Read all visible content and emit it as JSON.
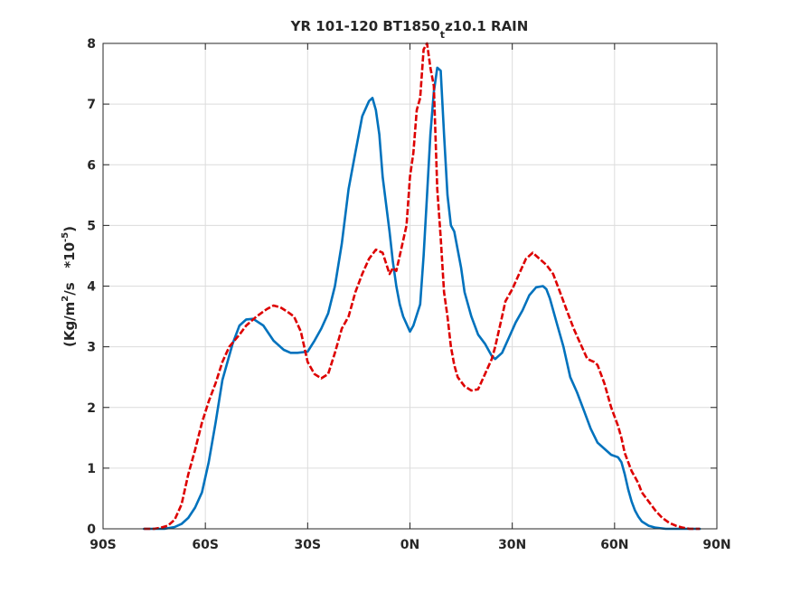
{
  "chart_data": {
    "type": "line",
    "title": {
      "main": "YR 101-120 BT1850",
      "subscript": "t",
      "rest": "z10.1 RAIN"
    },
    "ylabel": {
      "part1": "(Kg/m",
      "sup1": "2",
      "part2": "/s   *10",
      "sup2": "-5",
      "part3": ")"
    },
    "xlabel": "",
    "xlim": [
      -90,
      90
    ],
    "ylim": [
      0,
      8
    ],
    "xticks": [
      -90,
      -60,
      -30,
      0,
      30,
      60,
      90
    ],
    "xtick_labels": [
      "90S",
      "60S",
      "30S",
      "0N",
      "30N",
      "60N",
      "90N"
    ],
    "yticks": [
      0,
      1,
      2,
      3,
      4,
      5,
      6,
      7,
      8
    ],
    "ytick_labels": [
      "0",
      "1",
      "2",
      "3",
      "4",
      "5",
      "6",
      "7",
      "8"
    ],
    "grid": true,
    "series": [
      {
        "color": "#0072BD",
        "style": "solid",
        "x": [
          -78,
          -72,
          -69,
          -67,
          -65,
          -63,
          -61,
          -59,
          -57,
          -55,
          -52,
          -50,
          -48,
          -46,
          -43,
          -40,
          -37,
          -35,
          -33,
          -30,
          -28,
          -26,
          -24,
          -22,
          -20,
          -18,
          -16,
          -14,
          -12,
          -11,
          -10,
          -9,
          -8,
          -6,
          -5,
          -4,
          -3,
          -2,
          0,
          1,
          3,
          4,
          5,
          6,
          7,
          8,
          9,
          10,
          11,
          12,
          13,
          14,
          15,
          16,
          18,
          20,
          22,
          24,
          25,
          27,
          29,
          31,
          33,
          35,
          37,
          39,
          40,
          41,
          43,
          45,
          47,
          49,
          51,
          53,
          55,
          57,
          59,
          61,
          62,
          63,
          64,
          65,
          66,
          67,
          68,
          70,
          72,
          75,
          78,
          80,
          85
        ],
        "y": [
          0,
          0,
          0.03,
          0.08,
          0.18,
          0.35,
          0.6,
          1.1,
          1.75,
          2.45,
          3.05,
          3.35,
          3.45,
          3.46,
          3.35,
          3.1,
          2.95,
          2.9,
          2.9,
          2.92,
          3.1,
          3.3,
          3.55,
          4.0,
          4.7,
          5.6,
          6.2,
          6.8,
          7.05,
          7.1,
          6.9,
          6.5,
          5.8,
          4.9,
          4.4,
          4.0,
          3.7,
          3.5,
          3.25,
          3.35,
          3.7,
          4.5,
          5.5,
          6.5,
          7.2,
          7.6,
          7.55,
          6.5,
          5.5,
          5.0,
          4.9,
          4.6,
          4.3,
          3.9,
          3.5,
          3.2,
          3.05,
          2.85,
          2.8,
          2.9,
          3.15,
          3.4,
          3.6,
          3.85,
          3.98,
          4.0,
          3.95,
          3.8,
          3.4,
          3.0,
          2.5,
          2.25,
          1.95,
          1.65,
          1.42,
          1.32,
          1.22,
          1.18,
          1.1,
          0.9,
          0.65,
          0.45,
          0.3,
          0.2,
          0.12,
          0.05,
          0.02,
          0,
          0,
          0,
          0
        ]
      },
      {
        "color": "#DD0000",
        "style": "dashed",
        "x": [
          -78,
          -75,
          -73,
          -71,
          -69,
          -67,
          -65,
          -63,
          -61,
          -59,
          -57,
          -55,
          -53,
          -50,
          -48,
          -45,
          -42,
          -40,
          -38,
          -36,
          -34,
          -32,
          -30,
          -28,
          -26,
          -24,
          -22,
          -20,
          -18,
          -16,
          -14,
          -12,
          -10,
          -8,
          -6,
          -5,
          -4,
          -3,
          -1,
          0,
          1,
          2,
          3,
          4,
          5,
          6,
          7,
          8,
          9,
          10,
          11,
          12,
          13,
          14,
          16,
          18,
          20,
          22,
          24,
          25,
          26,
          27,
          28,
          30,
          32,
          34,
          36,
          38,
          40,
          42,
          44,
          46,
          48,
          50,
          52,
          54,
          55,
          57,
          59,
          61,
          62,
          63,
          64,
          65,
          66,
          67,
          68,
          70,
          72,
          74,
          76,
          78,
          80,
          82,
          84,
          85
        ],
        "y": [
          0,
          0,
          0.02,
          0.05,
          0.15,
          0.4,
          0.9,
          1.3,
          1.75,
          2.1,
          2.4,
          2.75,
          3.0,
          3.2,
          3.35,
          3.5,
          3.62,
          3.68,
          3.65,
          3.58,
          3.5,
          3.25,
          2.75,
          2.55,
          2.48,
          2.55,
          2.9,
          3.3,
          3.5,
          3.9,
          4.2,
          4.45,
          4.6,
          4.55,
          4.2,
          4.3,
          4.25,
          4.5,
          5.0,
          5.8,
          6.2,
          6.9,
          7.1,
          7.9,
          8.0,
          7.6,
          7.3,
          5.6,
          4.8,
          3.9,
          3.5,
          3.0,
          2.7,
          2.5,
          2.35,
          2.28,
          2.3,
          2.55,
          2.8,
          3.0,
          3.25,
          3.5,
          3.75,
          3.95,
          4.2,
          4.45,
          4.55,
          4.45,
          4.35,
          4.2,
          3.9,
          3.6,
          3.3,
          3.05,
          2.8,
          2.75,
          2.7,
          2.4,
          2.0,
          1.7,
          1.5,
          1.25,
          1.1,
          0.95,
          0.85,
          0.75,
          0.6,
          0.45,
          0.3,
          0.18,
          0.1,
          0.05,
          0.02,
          0,
          0,
          0
        ]
      }
    ]
  }
}
